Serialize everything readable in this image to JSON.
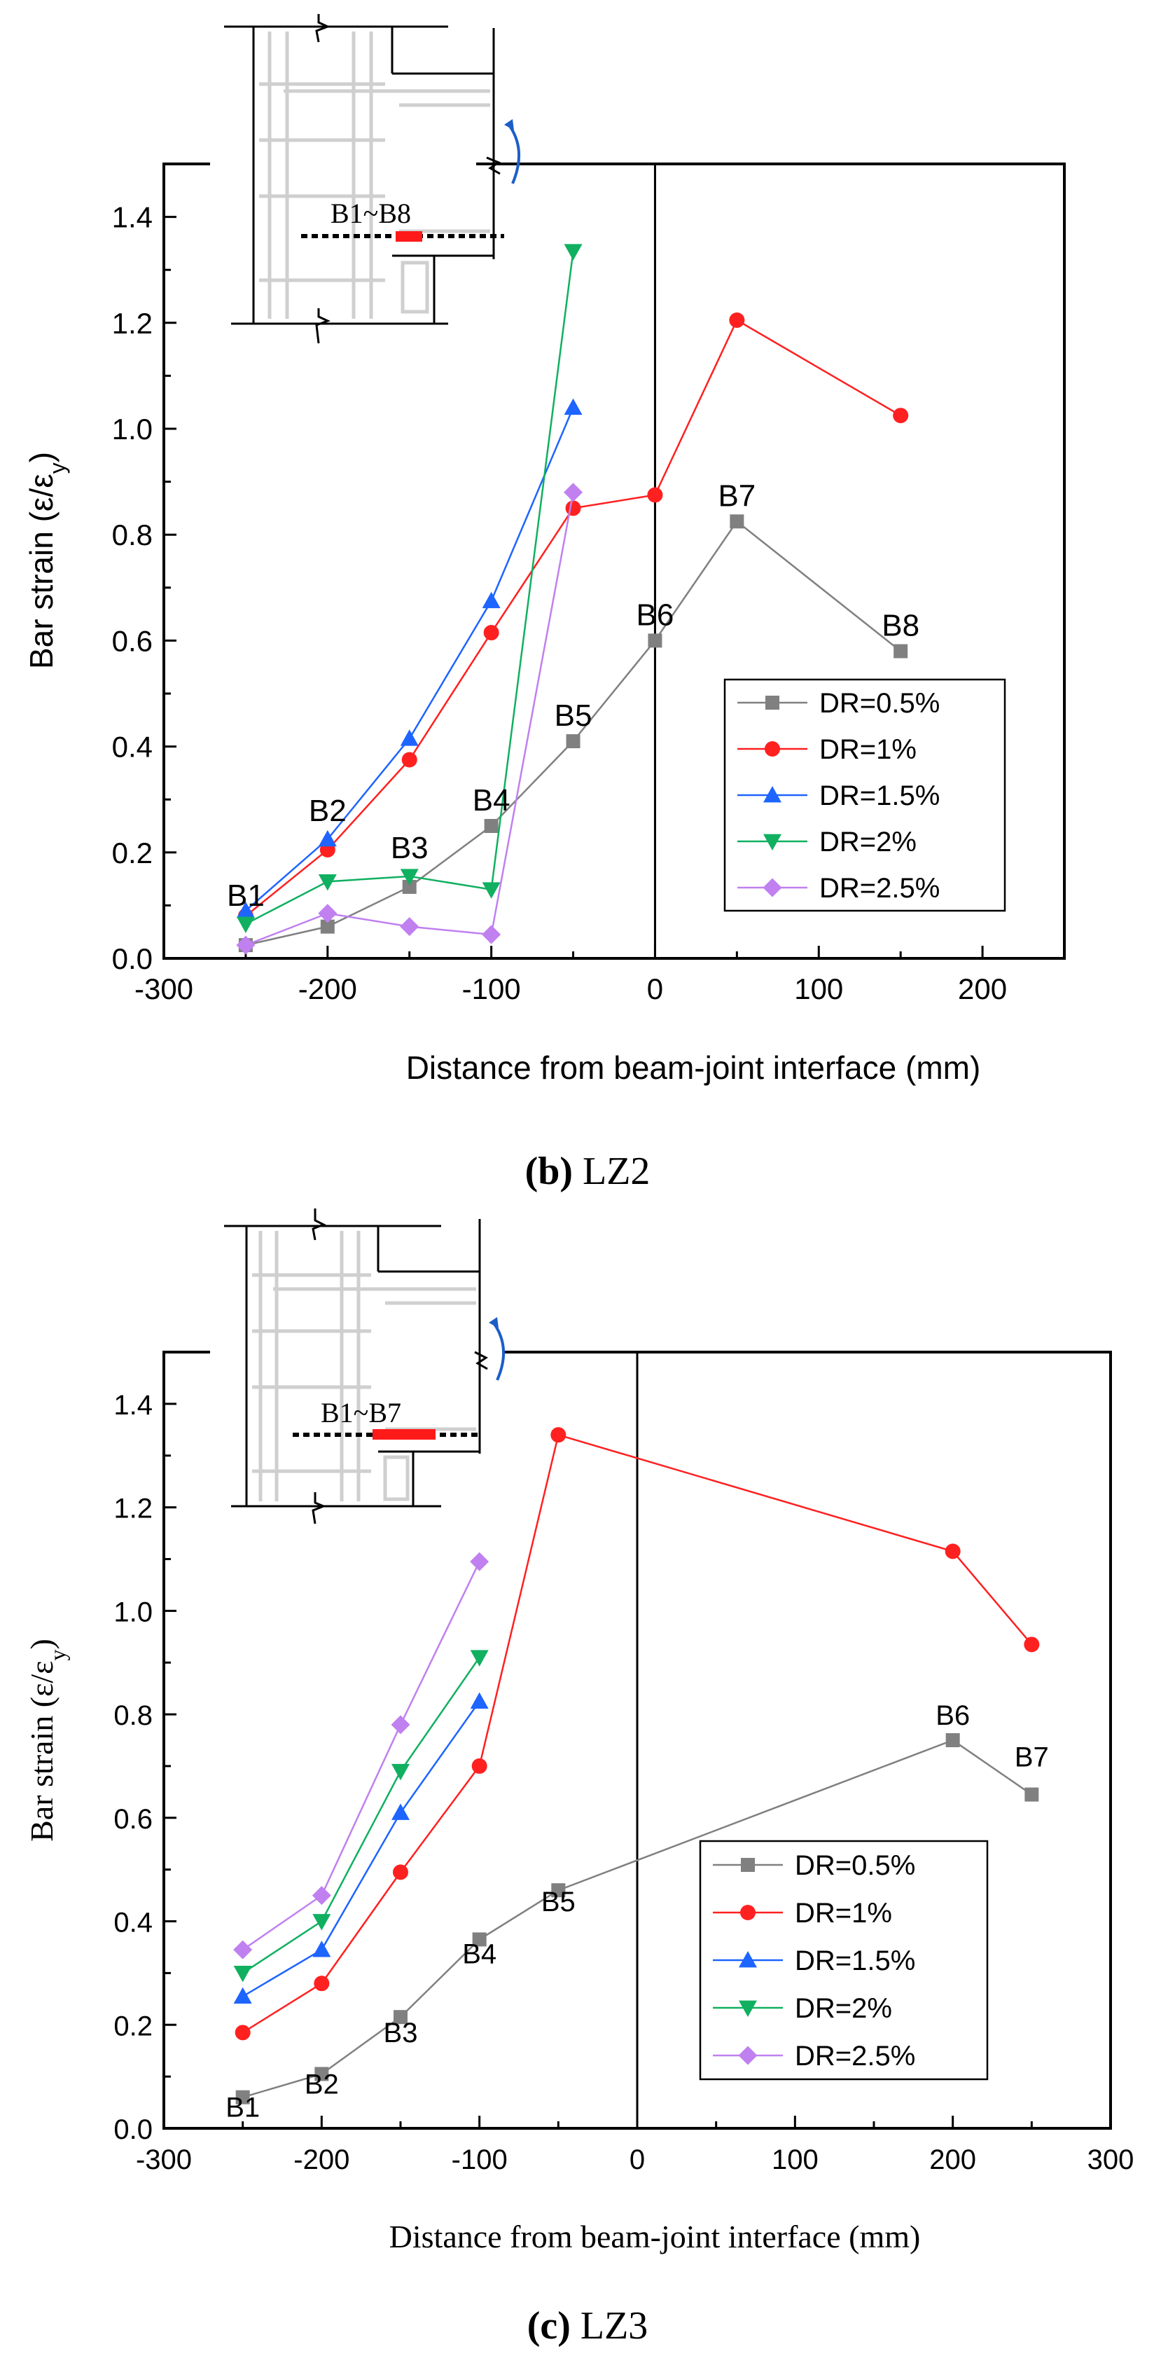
{
  "figure": {
    "caption_b_letter": "(b)",
    "caption_b_name": "LZ2",
    "caption_c_letter": "(c)",
    "caption_c_name": "LZ3"
  },
  "chart_data": [
    {
      "type": "line",
      "id": "b",
      "ylabel_main": "Bar strain (ε/ε",
      "ylabel_sub": "y",
      "ylabel_close": ")",
      "xlabel": "Distance from beam-joint interface (mm)",
      "xlim": [
        -300,
        250
      ],
      "ylim": [
        0.0,
        1.5
      ],
      "xticks": [
        -300,
        -200,
        -100,
        0,
        100,
        200
      ],
      "xtick_labels": [
        "-300",
        "-200",
        "-100",
        "0",
        "100",
        "200"
      ],
      "yticks": [
        0.0,
        0.2,
        0.4,
        0.6,
        0.8,
        1.0,
        1.2,
        1.4
      ],
      "ytick_labels": [
        "0.0",
        "0.2",
        "0.4",
        "0.6",
        "0.8",
        "1.0",
        "1.2",
        "1.4"
      ],
      "legend_position": "lower-right",
      "vertical_line_x": 0,
      "inset_label": "B1~B8",
      "series": [
        {
          "name": "DR=0.5%",
          "color": "#808080",
          "marker": "square",
          "x": [
            -250,
            -200,
            -150,
            -100,
            -50,
            0,
            50,
            150
          ],
          "y": [
            0.025,
            0.06,
            0.135,
            0.25,
            0.41,
            0.6,
            0.825,
            0.58
          ]
        },
        {
          "name": "DR=1%",
          "color": "#ff2020",
          "marker": "circle",
          "x": [
            -250,
            -200,
            -150,
            -100,
            -50,
            0,
            50,
            150
          ],
          "y": [
            0.08,
            0.205,
            0.375,
            0.615,
            0.85,
            0.875,
            1.205,
            1.025
          ]
        },
        {
          "name": "DR=1.5%",
          "color": "#1e64ff",
          "marker": "triangle-up",
          "x": [
            -250,
            -200,
            -150,
            -100,
            -50
          ],
          "y": [
            0.09,
            0.225,
            0.415,
            0.675,
            1.04
          ]
        },
        {
          "name": "DR=2%",
          "color": "#10b060",
          "marker": "triangle-down",
          "x": [
            -250,
            -200,
            -150,
            -100,
            -50
          ],
          "y": [
            0.065,
            0.145,
            0.155,
            0.13,
            1.335
          ]
        },
        {
          "name": "DR=2.5%",
          "color": "#c080f0",
          "marker": "diamond",
          "x": [
            -250,
            -200,
            -150,
            -100,
            -50
          ],
          "y": [
            0.025,
            0.085,
            0.06,
            0.045,
            0.88
          ]
        }
      ],
      "annotations": [
        {
          "text": "B1",
          "x": -250,
          "y": 0.07,
          "dy": -22
        },
        {
          "text": "B2",
          "x": -200,
          "y": 0.23,
          "dy": -22
        },
        {
          "text": "B3",
          "x": -150,
          "y": 0.16,
          "dy": -22
        },
        {
          "text": "B4",
          "x": -100,
          "y": 0.25,
          "dy": -22
        },
        {
          "text": "B5",
          "x": -50,
          "y": 0.41,
          "dy": -22
        },
        {
          "text": "B6",
          "x": 0,
          "y": 0.6,
          "dy": -22
        },
        {
          "text": "B7",
          "x": 50,
          "y": 0.825,
          "dy": -22
        },
        {
          "text": "B8",
          "x": 150,
          "y": 0.58,
          "dy": -22
        }
      ]
    },
    {
      "type": "line",
      "id": "c",
      "ylabel_main": "Bar strain (ε/ε",
      "ylabel_sub": "y",
      "ylabel_close": ")",
      "xlabel": "Distance from beam-joint interface (mm)",
      "xlim": [
        -300,
        300
      ],
      "ylim": [
        0.0,
        1.5
      ],
      "xticks": [
        -300,
        -200,
        -100,
        0,
        100,
        200,
        300
      ],
      "xtick_labels": [
        "-300",
        "-200",
        "-100",
        "0",
        "100",
        "200",
        "300"
      ],
      "yticks": [
        0.0,
        0.2,
        0.4,
        0.6,
        0.8,
        1.0,
        1.2,
        1.4
      ],
      "ytick_labels": [
        "0.0",
        "0.2",
        "0.4",
        "0.6",
        "0.8",
        "1.0",
        "1.2",
        "1.4"
      ],
      "legend_position": "lower-right",
      "vertical_line_x": 0,
      "inset_label": "B1~B7",
      "series": [
        {
          "name": "DR=0.5%",
          "color": "#808080",
          "marker": "square",
          "x": [
            -250,
            -200,
            -150,
            -100,
            -50,
            200,
            250
          ],
          "y": [
            0.06,
            0.105,
            0.215,
            0.365,
            0.46,
            0.75,
            0.645
          ]
        },
        {
          "name": "DR=1%",
          "color": "#ff2020",
          "marker": "circle",
          "x": [
            -250,
            -200,
            -150,
            -100,
            -50,
            200,
            250
          ],
          "y": [
            0.185,
            0.28,
            0.495,
            0.7,
            1.34,
            1.115,
            0.935
          ]
        },
        {
          "name": "DR=1.5%",
          "color": "#1e64ff",
          "marker": "triangle-up",
          "x": [
            -250,
            -200,
            -150,
            -100
          ],
          "y": [
            0.255,
            0.345,
            0.61,
            0.825
          ]
        },
        {
          "name": "DR=2%",
          "color": "#10b060",
          "marker": "triangle-down",
          "x": [
            -250,
            -200,
            -150,
            -100
          ],
          "y": [
            0.3,
            0.4,
            0.69,
            0.91
          ]
        },
        {
          "name": "DR=2.5%",
          "color": "#c080f0",
          "marker": "diamond",
          "x": [
            -250,
            -200,
            -150,
            -100
          ],
          "y": [
            0.345,
            0.45,
            0.78,
            1.095
          ]
        }
      ],
      "annotations": [
        {
          "text": "B1",
          "x": -250,
          "y": 0.06,
          "dy": 28
        },
        {
          "text": "B2",
          "x": -200,
          "y": 0.105,
          "dy": 28
        },
        {
          "text": "B3",
          "x": -150,
          "y": 0.215,
          "dy": 36
        },
        {
          "text": "B4",
          "x": -100,
          "y": 0.365,
          "dy": 34
        },
        {
          "text": "B5",
          "x": -50,
          "y": 0.46,
          "dy": 30
        },
        {
          "text": "B6",
          "x": 200,
          "y": 0.75,
          "dy": -22
        },
        {
          "text": "B7",
          "x": 250,
          "y": 0.645,
          "dy": -40
        }
      ]
    }
  ]
}
